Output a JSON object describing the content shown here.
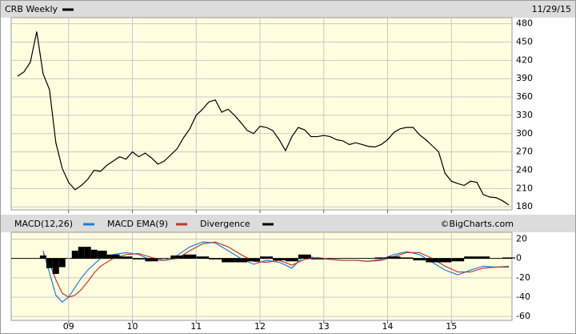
{
  "chart_data": [
    {
      "type": "line",
      "annotation": "11/29/15",
      "x": [
        2008.2,
        2008.3,
        2008.4,
        2008.5,
        2008.6,
        2008.7,
        2008.8,
        2008.9,
        2009.0,
        2009.1,
        2009.2,
        2009.3,
        2009.4,
        2009.5,
        2009.6,
        2009.7,
        2009.8,
        2009.9,
        2010.0,
        2010.1,
        2010.2,
        2010.3,
        2010.4,
        2010.5,
        2010.6,
        2010.7,
        2010.8,
        2010.9,
        2011.0,
        2011.1,
        2011.2,
        2011.3,
        2011.4,
        2011.5,
        2011.6,
        2011.7,
        2011.8,
        2011.9,
        2012.0,
        2012.1,
        2012.2,
        2012.3,
        2012.4,
        2012.5,
        2012.6,
        2012.7,
        2012.8,
        2012.9,
        2013.0,
        2013.1,
        2013.2,
        2013.3,
        2013.4,
        2013.5,
        2013.6,
        2013.7,
        2013.8,
        2013.9,
        2014.0,
        2014.1,
        2014.2,
        2014.3,
        2014.4,
        2014.5,
        2014.6,
        2014.7,
        2014.8,
        2014.9,
        2015.0,
        2015.1,
        2015.2,
        2015.3,
        2015.4,
        2015.5,
        2015.6,
        2015.7,
        2015.8,
        2015.9
      ],
      "series": [
        {
          "name": "CRB Weekly",
          "color": "#000000",
          "values": [
            394,
            401,
            417,
            467,
            398,
            372,
            285,
            243,
            220,
            208,
            215,
            225,
            240,
            238,
            248,
            255,
            262,
            258,
            270,
            262,
            268,
            260,
            250,
            255,
            265,
            275,
            293,
            308,
            330,
            340,
            352,
            355,
            335,
            340,
            330,
            318,
            305,
            300,
            312,
            310,
            305,
            290,
            272,
            295,
            310,
            306,
            295,
            295,
            297,
            295,
            290,
            288,
            282,
            285,
            282,
            279,
            278,
            282,
            290,
            302,
            308,
            310,
            310,
            298,
            290,
            280,
            270,
            235,
            222,
            218,
            215,
            222,
            220,
            200,
            196,
            195,
            190,
            183
          ]
        }
      ],
      "xlim": [
        2008.1,
        2015.95
      ],
      "xticks": [
        2009,
        2010,
        2011,
        2012,
        2013,
        2014,
        2015
      ],
      "ylim": [
        175,
        490
      ],
      "yticks": [
        180,
        210,
        240,
        270,
        300,
        330,
        360,
        390,
        420,
        450,
        480
      ],
      "grid": true
    },
    {
      "type": "line",
      "annotation": "©BigCharts.com",
      "x": [
        2008.6,
        2008.7,
        2008.8,
        2008.9,
        2009.0,
        2009.1,
        2009.2,
        2009.3,
        2009.4,
        2009.5,
        2009.7,
        2009.9,
        2010.1,
        2010.3,
        2010.5,
        2010.7,
        2010.9,
        2011.1,
        2011.3,
        2011.5,
        2011.7,
        2011.9,
        2012.1,
        2012.3,
        2012.5,
        2012.7,
        2012.9,
        2013.1,
        2013.3,
        2013.5,
        2013.7,
        2013.9,
        2014.1,
        2014.3,
        2014.5,
        2014.7,
        2014.9,
        2015.1,
        2015.3,
        2015.5,
        2015.7,
        2015.9
      ],
      "series": [
        {
          "name": "MACD(12,26)",
          "color": "#1e7be0",
          "values": [
            8,
            -15,
            -38,
            -45,
            -40,
            -30,
            -20,
            -12,
            -6,
            0,
            4,
            6,
            4,
            -2,
            -2,
            3,
            12,
            17,
            16,
            8,
            0,
            -6,
            -2,
            -4,
            -10,
            3,
            0,
            -1,
            -2,
            -2,
            -3,
            -1,
            4,
            7,
            4,
            -4,
            -12,
            -17,
            -12,
            -8,
            -9,
            -8
          ]
        },
        {
          "name": "MACD EMA(9)",
          "color": "#c0392b",
          "values": [
            5,
            -5,
            -22,
            -36,
            -40,
            -38,
            -32,
            -24,
            -15,
            -8,
            0,
            4,
            5,
            1,
            -2,
            0,
            8,
            15,
            17,
            12,
            4,
            -3,
            -4,
            -2,
            -7,
            -1,
            1,
            -1,
            -2,
            -2,
            -3,
            -2,
            2,
            6,
            6,
            0,
            -8,
            -14,
            -14,
            -10,
            -9,
            -9
          ]
        },
        {
          "name": "Divergence",
          "color": "#000000",
          "type": "bar",
          "values": [
            3,
            -10,
            -16,
            -9,
            0,
            8,
            12,
            12,
            9,
            8,
            4,
            2,
            -1,
            -3,
            0,
            3,
            4,
            2,
            -1,
            -4,
            -4,
            -3,
            2,
            -2,
            -3,
            4,
            -1,
            0,
            0,
            0,
            0,
            1,
            2,
            1,
            -2,
            -4,
            -4,
            -3,
            2,
            2,
            0,
            1
          ]
        }
      ],
      "xlim": [
        2008.1,
        2015.95
      ],
      "xticks": [
        {
          "value": 2009,
          "label": "09"
        },
        {
          "value": 2010,
          "label": "10"
        },
        {
          "value": 2011,
          "label": "11"
        },
        {
          "value": 2012,
          "label": "12"
        },
        {
          "value": 2013,
          "label": "13"
        },
        {
          "value": 2014,
          "label": "14"
        },
        {
          "value": 2015,
          "label": "15"
        }
      ],
      "ylim": [
        -64,
        27
      ],
      "yticks": [
        20,
        0,
        -20,
        -40,
        -60
      ],
      "grid": true
    }
  ]
}
